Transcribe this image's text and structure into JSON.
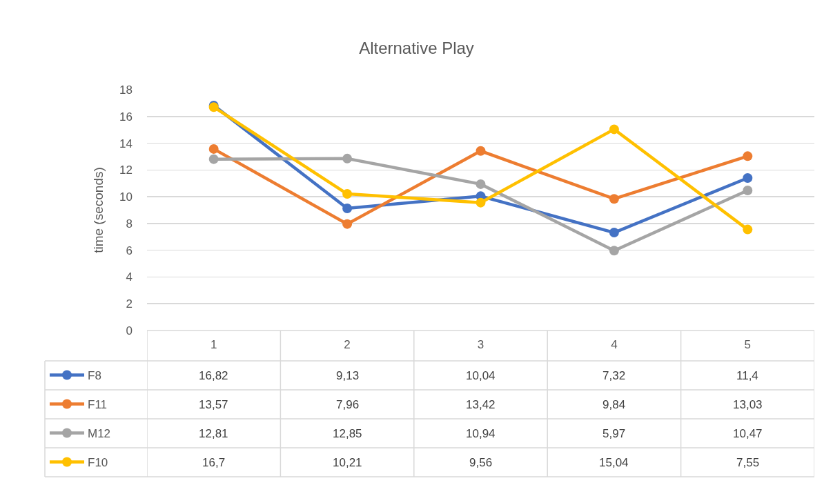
{
  "chart_data": {
    "type": "line",
    "title": "Alternative Play",
    "ylabel": "time (seconds)",
    "categories": [
      "1",
      "2",
      "3",
      "4",
      "5"
    ],
    "series": [
      {
        "name": "F8",
        "color": "#4472c4",
        "values": [
          16.82,
          9.13,
          10.04,
          7.32,
          11.4
        ],
        "value_labels": [
          "16,82",
          "9,13",
          "10,04",
          "7,32",
          "11,4"
        ]
      },
      {
        "name": "F11",
        "color": "#ed7d31",
        "values": [
          13.57,
          7.96,
          13.42,
          9.84,
          13.03
        ],
        "value_labels": [
          "13,57",
          "7,96",
          "13,42",
          "9,84",
          "13,03"
        ]
      },
      {
        "name": "M12",
        "color": "#a5a5a5",
        "values": [
          12.81,
          12.85,
          10.94,
          5.97,
          10.47
        ],
        "value_labels": [
          "12,81",
          "12,85",
          "10,94",
          "5,97",
          "10,47"
        ]
      },
      {
        "name": "F10",
        "color": "#ffc000",
        "values": [
          16.7,
          10.21,
          9.56,
          15.04,
          7.55
        ],
        "value_labels": [
          "16,7",
          "10,21",
          "9,56",
          "15,04",
          "7,55"
        ]
      }
    ],
    "ylim": [
      0,
      18
    ],
    "yticks": [
      0,
      2,
      4,
      6,
      8,
      10,
      12,
      14,
      16,
      18
    ],
    "grid": "y",
    "legend": "bottom left",
    "marker": "circle",
    "line_style": "solid"
  }
}
